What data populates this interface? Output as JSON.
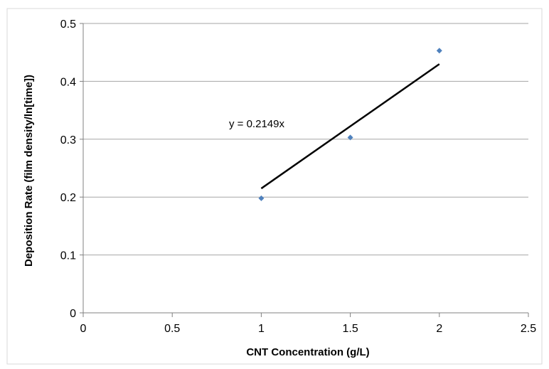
{
  "chart_data": {
    "type": "scatter",
    "title": "",
    "xlabel": "CNT Concentration (g/L)",
    "ylabel": "Deposition Rate (film density/ln[time])",
    "xlim": [
      0,
      2.5
    ],
    "ylim": [
      0,
      0.5
    ],
    "x_ticks": [
      "0",
      "0.5",
      "1",
      "1.5",
      "2",
      "2.5"
    ],
    "y_ticks": [
      "0",
      "0.1",
      "0.2",
      "0.3",
      "0.4",
      "0.5"
    ],
    "grid": "horizontal",
    "legend": "none",
    "series": [
      {
        "points": [
          {
            "x": 1,
            "y": 0.198
          },
          {
            "x": 1.5,
            "y": 0.303
          },
          {
            "x": 2,
            "y": 0.453
          }
        ],
        "color": "#4F81BD",
        "marker": "diamond"
      }
    ],
    "trendline": {
      "equation": "y = 0.2149x",
      "slope": 0.2149,
      "x_range": [
        1,
        2
      ],
      "color": "#000000"
    }
  }
}
